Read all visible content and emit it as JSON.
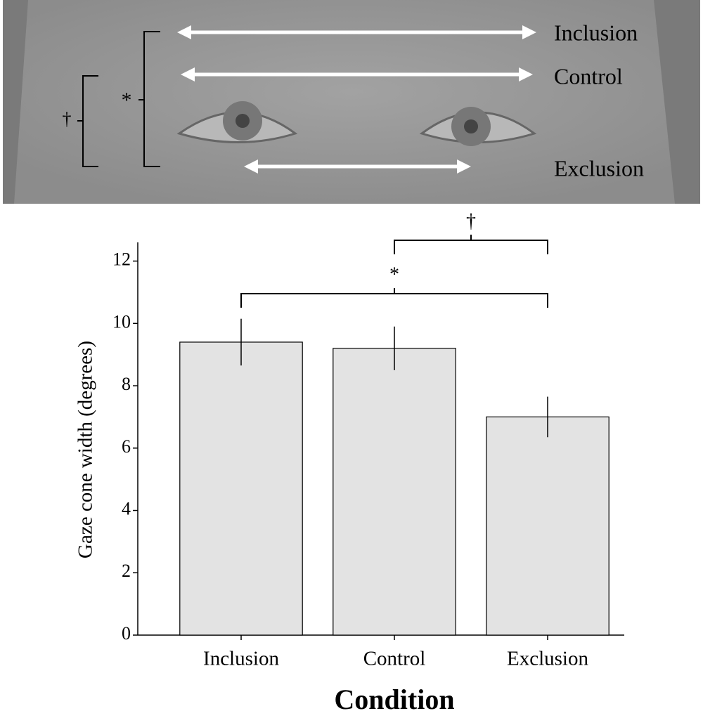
{
  "eye_panel": {
    "labels": [
      "Inclusion",
      "Control",
      "Exclusion"
    ],
    "markers": [
      "†",
      "*"
    ]
  },
  "chart_data": {
    "type": "bar",
    "categories": [
      "Inclusion",
      "Control",
      "Exclusion"
    ],
    "values": [
      9.4,
      9.2,
      7.0
    ],
    "errors": [
      0.75,
      0.7,
      0.65
    ],
    "color": "#e3e3e3",
    "xlabel": "Condition",
    "ylabel": "Gaze cone width (degrees)",
    "ylim": [
      0,
      12.6
    ],
    "yticks": [
      0,
      2,
      4,
      6,
      8,
      10,
      12
    ],
    "significance": [
      {
        "label": "*",
        "between": [
          "Inclusion",
          "Exclusion"
        ]
      },
      {
        "label": "†",
        "between": [
          "Control",
          "Exclusion"
        ]
      }
    ]
  }
}
